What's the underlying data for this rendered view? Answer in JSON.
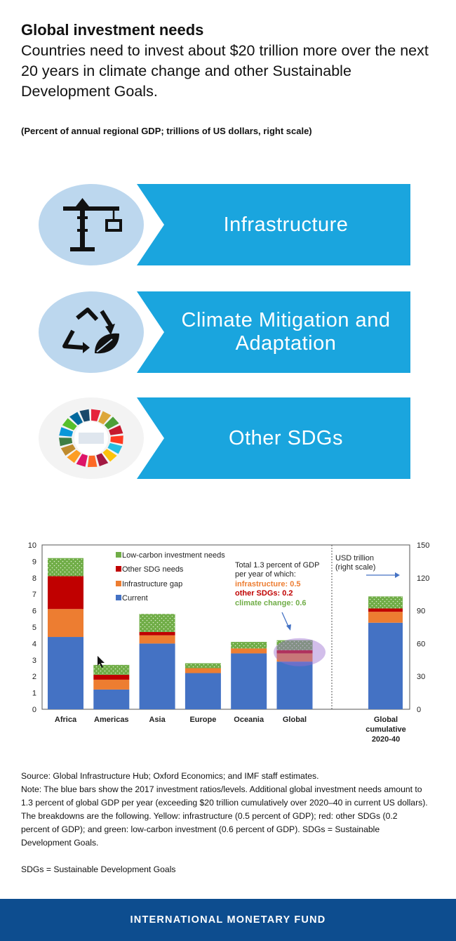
{
  "header": {
    "title": "Global investment needs",
    "subtitle": "Countries need to invest about $20 trillion more over the next 20 years in climate change and other Sustainable Development Goals.",
    "units": "(Percent of annual regional GDP; trillions of US dollars, right scale)"
  },
  "banners": [
    {
      "label": "Infrastructure",
      "icon": "crane-icon",
      "color": "#1aa5de"
    },
    {
      "label": "Climate Mitigation and Adaptation",
      "icon": "recycle-leaf-icon",
      "color": "#1aa5de"
    },
    {
      "label": "Other SDGs",
      "icon": "sdg-wheel-icon",
      "color": "#1aa5de"
    }
  ],
  "chart_data": {
    "type": "bar",
    "stacked": true,
    "categories": [
      "Africa",
      "Americas",
      "Asia",
      "Europe",
      "Oceania",
      "Global"
    ],
    "cumulative_category": [
      "Global",
      "cumulative",
      "2020-40"
    ],
    "series": [
      {
        "name": "Current",
        "color": "#4472c4",
        "values": [
          4.4,
          1.2,
          4.0,
          2.2,
          3.4,
          2.9
        ]
      },
      {
        "name": "Infrastructure gap",
        "color": "#ed7d31",
        "values": [
          1.7,
          0.6,
          0.5,
          0.3,
          0.3,
          0.5
        ]
      },
      {
        "name": "Other SDG needs",
        "color": "#c00000",
        "values": [
          2.0,
          0.3,
          0.2,
          0.0,
          0.0,
          0.2
        ]
      },
      {
        "name": "Low-carbon investment needs",
        "color": "#70ad47",
        "values": [
          1.1,
          0.6,
          1.1,
          0.3,
          0.4,
          0.6
        ]
      }
    ],
    "cumulative_right_scale": {
      "Current": 79,
      "Infrastructure gap": 10,
      "Other SDG needs": 3,
      "Low-carbon investment needs": 11
    },
    "ylim": [
      0,
      10
    ],
    "yticks": [
      "0",
      "1",
      "2",
      "3",
      "4",
      "5",
      "6",
      "7",
      "8",
      "9",
      "10"
    ],
    "ylim_right": [
      0,
      150
    ],
    "yticks_right": [
      "0",
      "30",
      "60",
      "90",
      "120",
      "150"
    ],
    "legend": [
      "Low-carbon investment needs",
      "Other SDG needs",
      "Infrastructure gap",
      "Current"
    ],
    "right_axis_label": [
      "USD trillion",
      "(right scale)"
    ],
    "annotation": {
      "lines": [
        "Total 1.3 percent of GDP",
        "per year of which:"
      ],
      "infrastructure": "infrastructure: 0.5",
      "sdgs": "other SDGs: 0.2",
      "climate": "climate change: 0.6"
    },
    "colors": {
      "infrastructure_text": "#ed7d31",
      "sdgs_text": "#c00000",
      "climate_text": "#70ad47",
      "highlight": "#9b6fd0"
    }
  },
  "notes": {
    "source": "Source: Global Infrastructure Hub; Oxford Economics; and IMF staff estimates.",
    "note": "Note: The blue bars show the 2017 investment ratios/levels. Additional global investment needs amount to 1.3 percent of global GDP per year (exceeding $20 trillion cumulatively over 2020–40 in current US dollars). The breakdowns are the following. Yellow: infrastructure (0.5 percent of GDP); red: other SDGs (0.2 percent of GDP); and green: low-carbon investment (0.6 percent of GDP). SDGs = Sustainable Development Goals.",
    "abbrev": "SDGs = Sustainable Development Goals"
  },
  "footer": {
    "org": "INTERNATIONAL MONETARY FUND",
    "color": "#0d4d8f"
  }
}
